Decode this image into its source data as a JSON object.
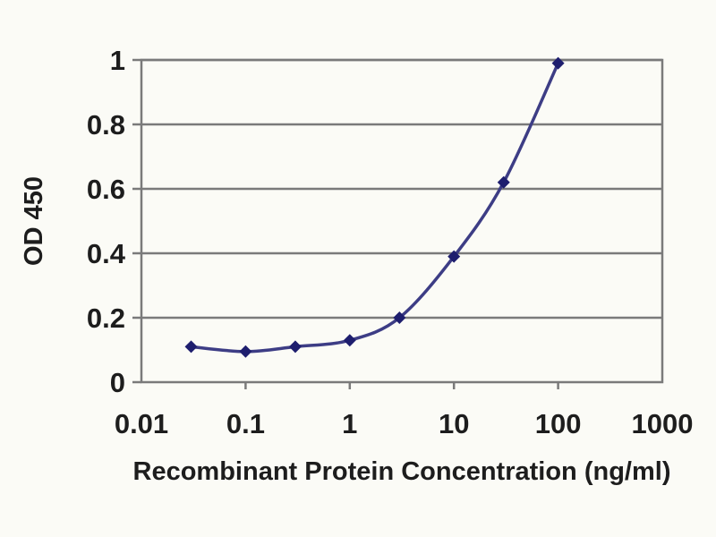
{
  "chart_data": {
    "type": "line",
    "title": "",
    "xlabel": "Recombinant Protein Concentration (ng/ml)",
    "ylabel": "OD 450",
    "x_scale": "log",
    "x": [
      0.03,
      0.1,
      0.3,
      1,
      3,
      10,
      30,
      100
    ],
    "y": [
      0.11,
      0.095,
      0.11,
      0.13,
      0.2,
      0.39,
      0.62,
      0.99
    ],
    "xlim": [
      0.01,
      1000
    ],
    "ylim": [
      0,
      1
    ],
    "x_ticks": [
      0.01,
      0.1,
      1,
      10,
      100,
      1000
    ],
    "x_tick_labels": [
      "0.01",
      "0.1",
      "1",
      "10",
      "100",
      "1000"
    ],
    "y_ticks": [
      0,
      0.2,
      0.4,
      0.6,
      0.8,
      1
    ],
    "y_tick_labels": [
      "0",
      "0.2",
      "0.4",
      "0.6",
      "0.8",
      "1"
    ],
    "grid": "horizontal",
    "legend": "none",
    "marker": "diamond",
    "line_style": "smooth",
    "colors": {
      "line": "#3d3d85",
      "marker": "#1e1e6e",
      "grid": "#7a7a7a",
      "frame": "#7a7a7a",
      "text": "#1d1d1d",
      "background": "#fbfbf6"
    }
  }
}
